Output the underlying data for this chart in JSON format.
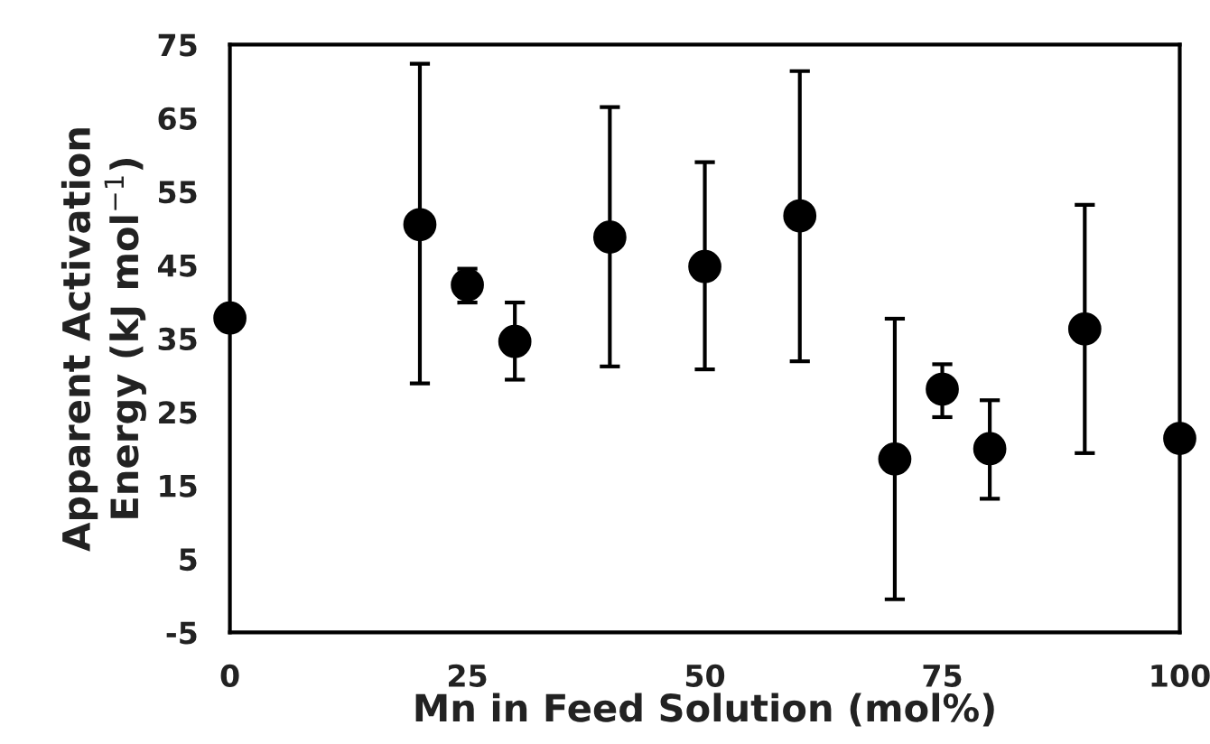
{
  "chart_data": {
    "type": "scatter",
    "xlabel": "Mn in Feed Solution (mol%)",
    "ylabel": "Apparent Activation\nEnergy (kJ mol$^{−1}$)",
    "x": [
      0,
      20,
      25,
      30,
      40,
      50,
      60,
      70,
      75,
      80,
      90,
      100
    ],
    "values": [
      37.8,
      50.5,
      42.3,
      34.6,
      48.8,
      44.8,
      51.7,
      18.6,
      28.1,
      20,
      36.3,
      21.4
    ],
    "errors": [
      null,
      [
        28.9,
        72.4
      ],
      [
        39.9,
        44.5
      ],
      [
        29.4,
        39.9
      ],
      [
        31.2,
        66.5
      ],
      [
        30.8,
        59
      ],
      [
        31.9,
        71.4
      ],
      [
        -0.5,
        37.7
      ],
      [
        24.3,
        31.5
      ],
      [
        13.2,
        26.6
      ],
      [
        19.4,
        53.2
      ],
      null
    ],
    "color": "#000000",
    "marker": "circle",
    "xlim": [
      0,
      100
    ],
    "xticks": [
      0,
      25,
      50,
      75,
      100
    ],
    "ylim": [
      -5,
      75
    ],
    "yticks": [
      -5,
      5,
      15,
      25,
      35,
      45,
      55,
      65,
      75
    ],
    "grid": false
  }
}
